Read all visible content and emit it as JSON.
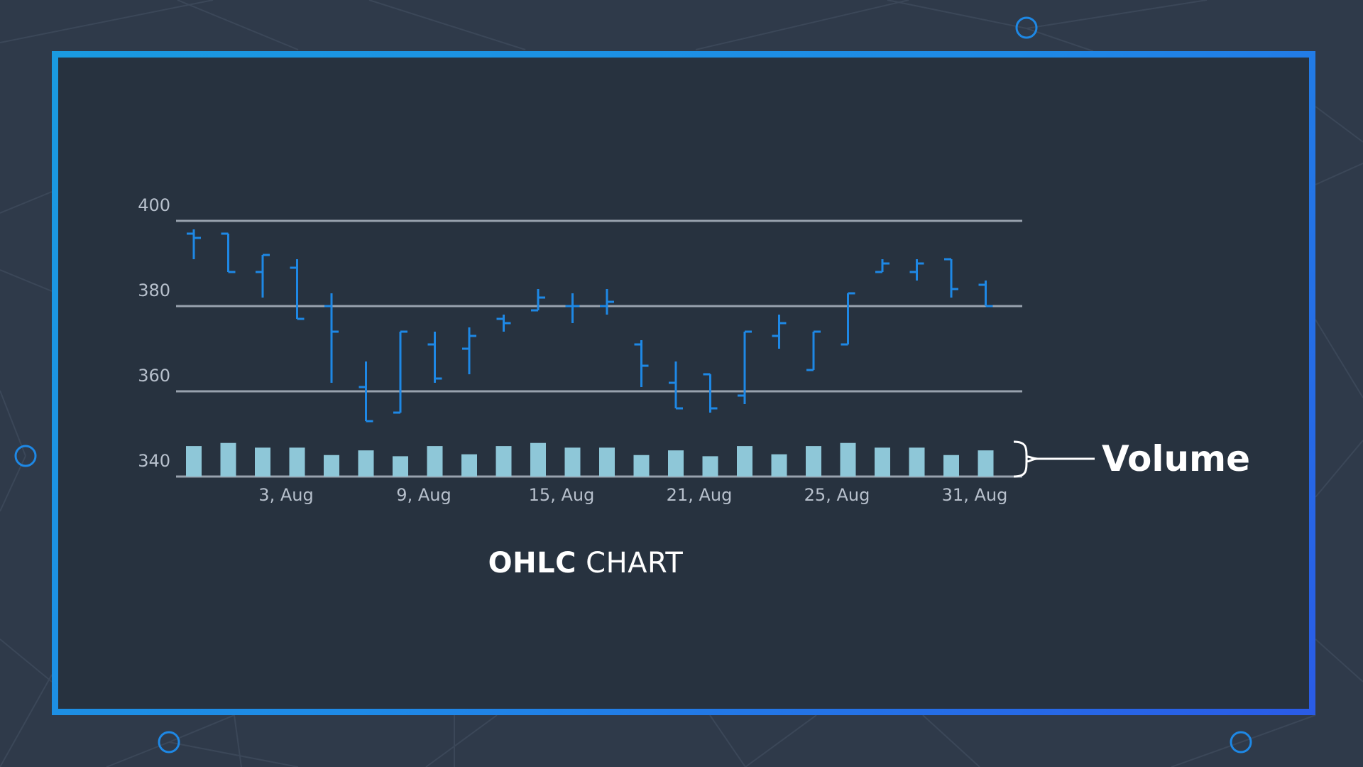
{
  "colors": {
    "background": "#2f3a4a",
    "panel": "#27323f",
    "frame": "#1a9ae0",
    "ohlc": "#1e88e5",
    "volume": "#8ec7d8",
    "grid": "#98a2ae",
    "text": "#ffffff"
  },
  "caption": {
    "bold": "OHLC",
    "normal": "CHART"
  },
  "volume_label": "Volume",
  "chart_data": {
    "type": "ohlc",
    "title": "OHLC CHART",
    "xlabel": "",
    "ylabel": "",
    "ylim": [
      340,
      400
    ],
    "yticks": [
      340,
      360,
      380,
      400
    ],
    "grid": true,
    "x_tick_labels": [
      {
        "label": "3, Aug",
        "index": 2
      },
      {
        "label": "9, Aug",
        "index": 6
      },
      {
        "label": "15, Aug",
        "index": 10
      },
      {
        "label": "21, Aug",
        "index": 14
      },
      {
        "label": "25, Aug",
        "index": 18
      },
      {
        "label": "31, Aug",
        "index": 22
      }
    ],
    "ohlc": [
      {
        "open": 397,
        "high": 398,
        "low": 391,
        "close": 396
      },
      {
        "open": 397,
        "high": 397,
        "low": 388,
        "close": 388
      },
      {
        "open": 388,
        "high": 392,
        "low": 382,
        "close": 392
      },
      {
        "open": 389,
        "high": 391,
        "low": 377,
        "close": 377
      },
      {
        "open": 380,
        "high": 383,
        "low": 362,
        "close": 374
      },
      {
        "open": 361,
        "high": 367,
        "low": 353,
        "close": 353
      },
      {
        "open": 355,
        "high": 374,
        "low": 355,
        "close": 374
      },
      {
        "open": 371,
        "high": 374,
        "low": 362,
        "close": 363
      },
      {
        "open": 370,
        "high": 375,
        "low": 364,
        "close": 373
      },
      {
        "open": 377,
        "high": 378,
        "low": 374,
        "close": 376
      },
      {
        "open": 379,
        "high": 384,
        "low": 379,
        "close": 382
      },
      {
        "open": 380,
        "high": 383,
        "low": 376,
        "close": 380
      },
      {
        "open": 380,
        "high": 384,
        "low": 378,
        "close": 381
      },
      {
        "open": 371,
        "high": 372,
        "low": 361,
        "close": 366
      },
      {
        "open": 362,
        "high": 367,
        "low": 356,
        "close": 356
      },
      {
        "open": 364,
        "high": 364,
        "low": 355,
        "close": 356
      },
      {
        "open": 359,
        "high": 374,
        "low": 357,
        "close": 374
      },
      {
        "open": 373,
        "high": 378,
        "low": 370,
        "close": 376
      },
      {
        "open": 365,
        "high": 374,
        "low": 365,
        "close": 374
      },
      {
        "open": 371,
        "high": 383,
        "low": 371,
        "close": 383
      },
      {
        "open": 388,
        "high": 391,
        "low": 388,
        "close": 390
      },
      {
        "open": 388,
        "high": 391,
        "low": 386,
        "close": 390
      },
      {
        "open": 391,
        "high": 391,
        "low": 382,
        "close": 384
      },
      {
        "open": 385,
        "high": 386,
        "low": 380,
        "close": 380
      }
    ],
    "volume": {
      "units": "relative",
      "values": [
        0.78,
        0.86,
        0.74,
        0.74,
        0.55,
        0.67,
        0.52,
        0.78,
        0.57,
        0.78,
        0.86,
        0.74,
        0.74,
        0.55,
        0.67,
        0.52,
        0.78,
        0.57,
        0.78,
        0.86,
        0.74,
        0.74,
        0.55,
        0.67
      ]
    }
  }
}
